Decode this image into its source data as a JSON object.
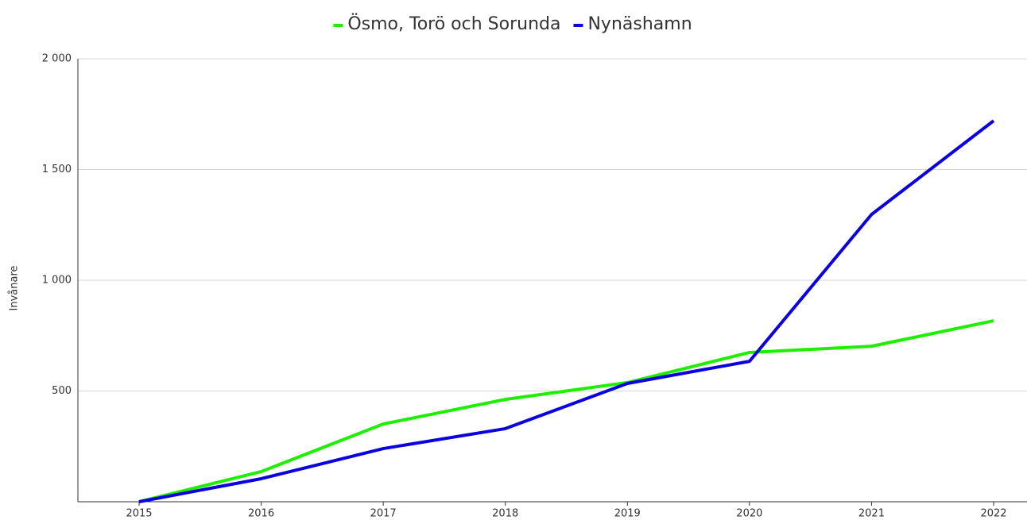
{
  "chart_data": {
    "type": "line",
    "y_label": "Invånare",
    "categories": [
      "2015",
      "2016",
      "2017",
      "2018",
      "2019",
      "2020",
      "2021",
      "2022"
    ],
    "series": [
      {
        "name": "Ösmo, Torö och Sorunda",
        "color": "#1eef00",
        "values": [
          0,
          136,
          351,
          462,
          538,
          674,
          702,
          817
        ]
      },
      {
        "name": "Nynäshamn",
        "color": "#0a00e0",
        "values": [
          0,
          104,
          240,
          330,
          534,
          634,
          1297,
          1720
        ]
      }
    ],
    "ylim": [
      0,
      2000
    ],
    "yticks": [
      500,
      {
        "value": 1000,
        "label": "1 000"
      },
      {
        "value": 1500,
        "label": "1 500"
      },
      {
        "value": 2000,
        "label": "2 000"
      }
    ],
    "grid": true,
    "legend": "top"
  }
}
